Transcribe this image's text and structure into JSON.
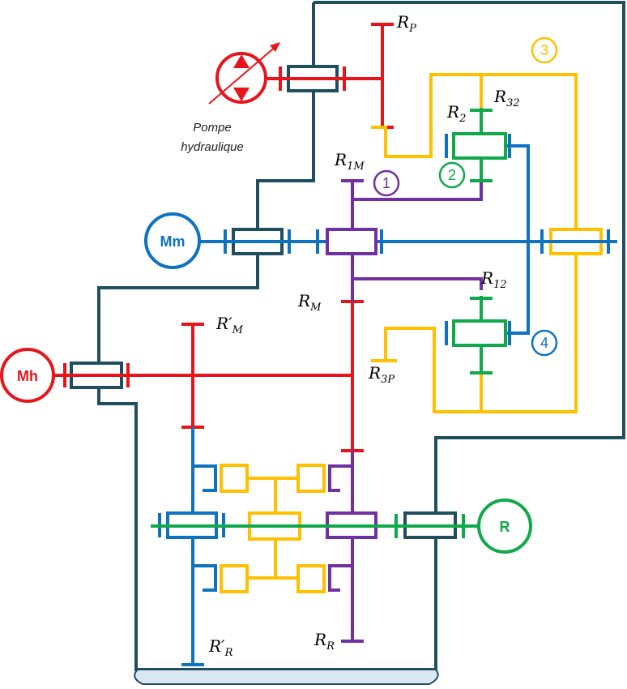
{
  "colors": {
    "frame": "#1f4e5e",
    "red": "#e8141c",
    "blue": "#0e72c0",
    "purple": "#7030a0",
    "green": "#0fa84a",
    "yellow": "#ffc000",
    "ground": "#d9e8f3"
  },
  "pump": {
    "line1": "Pompe",
    "line2": "hydraulique"
  },
  "motors": {
    "mm": "Mm",
    "mh": "Mh",
    "r": "R"
  },
  "bubbles": {
    "b1": "1",
    "b2": "2",
    "b3": "3",
    "b4": "4"
  },
  "labels": {
    "rp": {
      "main": "R",
      "sub": "P"
    },
    "r32": {
      "main": "R",
      "sub": "32"
    },
    "r2": {
      "main": "R",
      "sub": "2"
    },
    "r1m": {
      "main": "R",
      "sub": "1M"
    },
    "r12": {
      "main": "R",
      "sub": "12"
    },
    "rm": {
      "main": "R",
      "sub": "M"
    },
    "rpm": {
      "main": "R′",
      "sub": "M"
    },
    "r3p": {
      "main": "R",
      "sub": "3P"
    },
    "rpr": {
      "main": "R′",
      "sub": "R"
    },
    "rr": {
      "main": "R",
      "sub": "R"
    }
  }
}
